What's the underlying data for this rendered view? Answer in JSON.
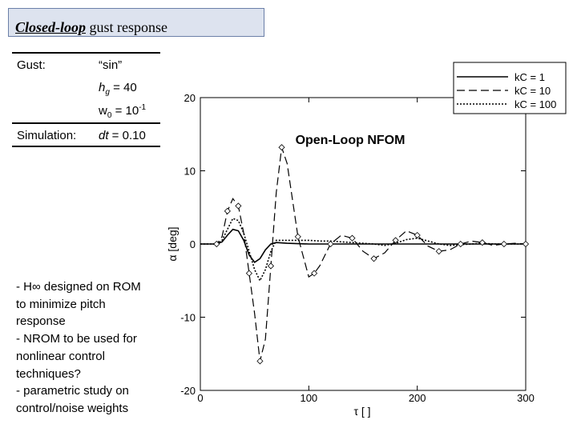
{
  "slide": {
    "title_italic": "Closed-loop",
    "title_rest": " gust response"
  },
  "params": {
    "gust_label": "Gust:",
    "gust_value": "“sin”",
    "hg_symbol": "h",
    "hg_sub": "g",
    "hg_rest": " = 40",
    "w0_symbol": "w",
    "w0_sub": "0",
    "w0_rest": " = 10",
    "w0_exp": "-1",
    "sim_label": "Simulation:",
    "dt_symbol": "dt",
    "dt_rest": " = 0.10"
  },
  "notes": [
    "- H∞ designed on ROM",
    "to minimize pitch",
    "response",
    "- NROM to be used for",
    "nonlinear control",
    "techniques?",
    "- parametric study on",
    "control/noise weights"
  ],
  "chart_data": {
    "type": "line",
    "title": "Open-Loop NFOM",
    "xlabel": "τ [ ]",
    "ylabel": "α [deg]",
    "xlim": [
      0,
      300
    ],
    "ylim": [
      -20,
      20
    ],
    "xticks": [
      0,
      100,
      200,
      300
    ],
    "yticks": [
      -20,
      -10,
      0,
      10,
      20
    ],
    "grid": false,
    "legend_position": "top-right",
    "series": [
      {
        "name": "kC = 1",
        "style": "solid",
        "x": [
          0,
          15,
          20,
          25,
          30,
          35,
          40,
          45,
          50,
          55,
          60,
          65,
          70,
          80,
          100,
          150,
          200,
          250,
          300
        ],
        "y": [
          0,
          0,
          0.3,
          1.2,
          2.0,
          1.8,
          0.5,
          -1.5,
          -2.5,
          -2.0,
          -0.8,
          0,
          0.2,
          0.1,
          0,
          0,
          0,
          0,
          0
        ]
      },
      {
        "name": "kC = 10",
        "style": "dashed",
        "x": [
          0,
          15,
          20,
          25,
          30,
          35,
          40,
          45,
          50,
          55,
          60,
          65,
          70,
          75,
          80,
          90,
          100,
          105,
          110,
          120,
          130,
          140,
          150,
          160,
          170,
          180,
          190,
          200,
          210,
          220,
          230,
          240,
          250,
          260,
          270,
          280,
          290,
          300
        ],
        "y": [
          0,
          0,
          1.0,
          4.5,
          6.2,
          5.2,
          1.5,
          -4.0,
          -9.5,
          -16.0,
          -13.0,
          -3.0,
          7.0,
          13.2,
          11.0,
          1.0,
          -4.5,
          -4.0,
          -3.0,
          0,
          1.2,
          0.8,
          -1.0,
          -2.0,
          -1.2,
          0.5,
          1.8,
          1.2,
          -0.3,
          -1.0,
          -0.8,
          0,
          0.4,
          0.2,
          -0.2,
          0,
          0.1,
          0
        ]
      },
      {
        "name": "kC = 100",
        "style": "dotted",
        "x": [
          0,
          15,
          20,
          25,
          30,
          35,
          40,
          45,
          50,
          55,
          60,
          65,
          70,
          80,
          90,
          100,
          110,
          120,
          130,
          140,
          150,
          160,
          170,
          180,
          190,
          200,
          210,
          220,
          230,
          240,
          250,
          260,
          270,
          280,
          290,
          300
        ],
        "y": [
          0,
          0,
          0.5,
          2.0,
          3.5,
          3.2,
          1.5,
          -1.0,
          -3.5,
          -5.0,
          -3.5,
          -1.0,
          0.5,
          0.5,
          0.5,
          0.5,
          0.4,
          0.4,
          0.3,
          0.2,
          0.1,
          0,
          -0.2,
          0.1,
          0.6,
          0.8,
          0.4,
          0,
          -0.2,
          -0.1,
          0,
          0.1,
          0,
          0,
          0,
          0
        ]
      }
    ]
  }
}
